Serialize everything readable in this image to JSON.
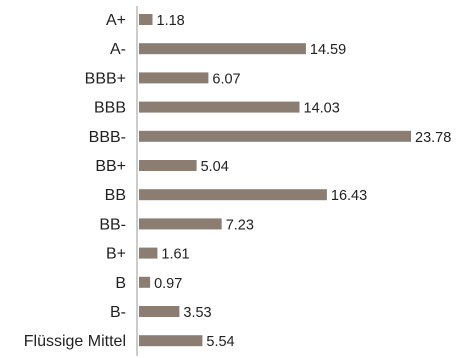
{
  "chart_data": {
    "type": "bar",
    "orientation": "horizontal",
    "title": "",
    "xlabel": "",
    "ylabel": "",
    "grid": false,
    "legend": "none",
    "xlim": [
      0,
      24
    ],
    "bar_color": "#8c7d72",
    "axis_color": "#9a9a9a",
    "categories": [
      "A+",
      "A-",
      "BBB+",
      "BBB",
      "BBB-",
      "BB+",
      "BB",
      "BB-",
      "B+",
      "B",
      "B-",
      "Flüssige Mittel"
    ],
    "values": [
      1.18,
      14.59,
      6.07,
      14.03,
      23.78,
      5.04,
      16.43,
      7.23,
      1.61,
      0.97,
      3.53,
      5.54
    ],
    "value_labels": [
      "1.18",
      "14.59",
      "6.07",
      "14.03",
      "23.78",
      "5.04",
      "16.43",
      "7.23",
      "1.61",
      "0.97",
      "3.53",
      "5.54"
    ]
  }
}
